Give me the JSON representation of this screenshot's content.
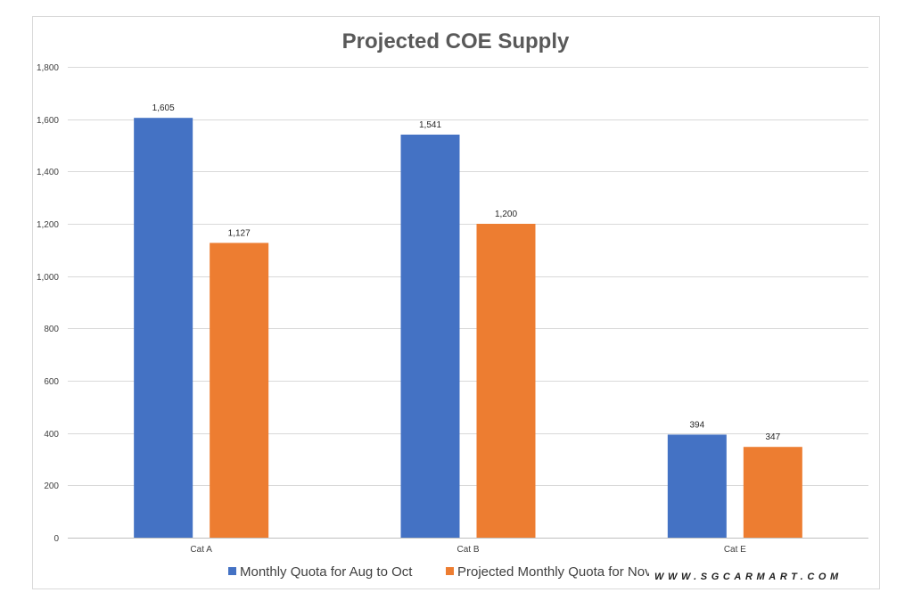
{
  "chart_data": {
    "type": "bar",
    "title": "Projected COE Supply",
    "categories": [
      "Cat A",
      "Cat B",
      "Cat E"
    ],
    "series": [
      {
        "name": "Monthly Quota for Aug to Oct",
        "values": [
          1605,
          1541,
          394
        ],
        "labels": [
          "1,605",
          "1,541",
          "394"
        ],
        "color": "#4472c4"
      },
      {
        "name": "Projected Monthly Quota for Nov to Jan",
        "values": [
          1127,
          1200,
          347
        ],
        "labels": [
          "1,127",
          "1,200",
          "347"
        ],
        "color": "#ed7d31"
      }
    ],
    "ylim": [
      0,
      1800
    ],
    "yticks": [
      0,
      200,
      400,
      600,
      800,
      1000,
      1200,
      1400,
      1600,
      1800
    ],
    "ytick_labels": [
      "0",
      "200",
      "400",
      "600",
      "800",
      "1,000",
      "1,200",
      "1,400",
      "1,600",
      "1,800"
    ],
    "xlabel": "",
    "ylabel": "",
    "grid": true,
    "legend_position": "bottom"
  },
  "watermark": "WWW.SGCARMART.COM",
  "colors": {
    "gridline": "#d9d9d9",
    "axis": "#bfbfbf",
    "title": "#595959"
  }
}
